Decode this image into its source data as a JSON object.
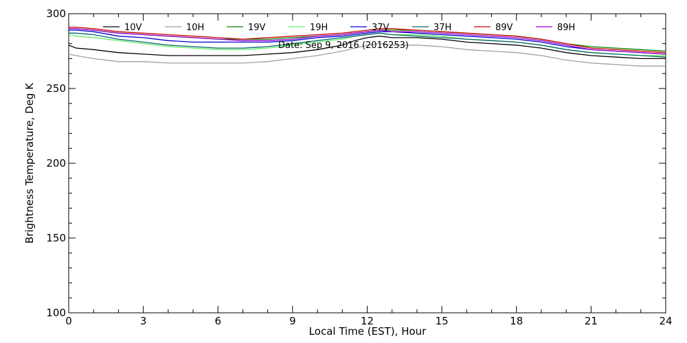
{
  "chart_data": {
    "type": "line",
    "title": "",
    "subtitle": "Date: Sep  9, 2016 (2016253)",
    "xlabel": "Local Time (EST), Hour",
    "ylabel": "Brightness Temperature, Deg K",
    "xlim": [
      0,
      24
    ],
    "ylim": [
      100,
      300
    ],
    "xticks": [
      0,
      3,
      6,
      9,
      12,
      15,
      18,
      21,
      24
    ],
    "yticks": [
      100,
      150,
      200,
      250,
      300
    ],
    "grid": false,
    "legend_position": "top",
    "series": [
      {
        "name": "10V",
        "color": "#000000",
        "x": [
          0,
          0.3,
          1,
          2,
          3,
          4,
          5,
          6,
          7,
          8,
          9,
          10,
          11,
          11.5,
          12,
          12.5,
          13,
          14,
          15,
          16,
          17,
          18,
          19,
          20,
          21,
          22,
          23,
          24
        ],
        "y": [
          279,
          277,
          276,
          274,
          273,
          272,
          272,
          272,
          272,
          273,
          274,
          276,
          279,
          282,
          284,
          285,
          284,
          284,
          283,
          281,
          280,
          279,
          277,
          274,
          272,
          271,
          270,
          270
        ]
      },
      {
        "name": "10H",
        "color": "#a0a0a0",
        "x": [
          0,
          0.3,
          1,
          2,
          3,
          4,
          5,
          6,
          7,
          8,
          9,
          10,
          11,
          11.5,
          12,
          12.5,
          13,
          14,
          15,
          16,
          17,
          18,
          19,
          20,
          21,
          22,
          23,
          24
        ],
        "y": [
          273,
          272,
          270,
          268,
          268,
          267,
          267,
          267,
          267,
          268,
          270,
          272,
          275,
          277,
          279,
          280,
          279,
          279,
          278,
          276,
          275,
          274,
          272,
          269,
          267,
          266,
          265,
          265
        ]
      },
      {
        "name": "19V",
        "color": "#008000",
        "x": [
          0,
          0.3,
          1,
          2,
          3,
          4,
          5,
          6,
          7,
          8,
          9,
          10,
          11,
          11.5,
          12,
          12.5,
          13,
          14,
          15,
          16,
          17,
          18,
          19,
          20,
          21,
          22,
          23,
          24
        ],
        "y": [
          290,
          290,
          289,
          287,
          286,
          285,
          284,
          283,
          283,
          283,
          284,
          285,
          286,
          287,
          288,
          289,
          289,
          289,
          288,
          287,
          286,
          285,
          283,
          280,
          278,
          277,
          276,
          275
        ]
      },
      {
        "name": "19H",
        "color": "#66ee66",
        "x": [
          0,
          0.3,
          1,
          2,
          3,
          4,
          5,
          6,
          7,
          8,
          9,
          10,
          11,
          11.5,
          12,
          12.5,
          13,
          14,
          15,
          16,
          17,
          18,
          19,
          20,
          21,
          22,
          23,
          24
        ],
        "y": [
          286,
          285,
          284,
          282,
          280,
          278,
          277,
          276,
          276,
          277,
          279,
          281,
          283,
          285,
          286,
          287,
          286,
          286,
          285,
          283,
          282,
          281,
          279,
          276,
          274,
          273,
          272,
          272
        ]
      },
      {
        "name": "37V",
        "color": "#0000cc",
        "x": [
          0,
          0.3,
          1,
          2,
          3,
          4,
          5,
          6,
          7,
          8,
          9,
          10,
          11,
          11.5,
          12,
          12.5,
          13,
          14,
          15,
          16,
          17,
          18,
          19,
          20,
          21,
          22,
          23,
          24
        ],
        "y": [
          289,
          289,
          288,
          285,
          284,
          282,
          281,
          281,
          281,
          281,
          282,
          284,
          285,
          286,
          287,
          288,
          288,
          287,
          286,
          285,
          284,
          283,
          281,
          278,
          276,
          275,
          274,
          273
        ]
      },
      {
        "name": "37H",
        "color": "#006666",
        "x": [
          0,
          0.3,
          1,
          2,
          3,
          4,
          5,
          6,
          7,
          8,
          9,
          10,
          11,
          11.5,
          12,
          12.5,
          13,
          14,
          15,
          16,
          17,
          18,
          19,
          20,
          21,
          22,
          23,
          24
        ],
        "y": [
          287,
          287,
          286,
          283,
          281,
          279,
          278,
          277,
          277,
          278,
          280,
          282,
          284,
          285,
          286,
          287,
          286,
          285,
          284,
          283,
          282,
          281,
          279,
          276,
          274,
          273,
          272,
          271
        ]
      },
      {
        "name": "89V",
        "color": "#cc0000",
        "x": [
          0,
          0.3,
          1,
          2,
          3,
          4,
          5,
          6,
          7,
          8,
          9,
          10,
          11,
          11.5,
          12,
          12.5,
          13,
          14,
          15,
          16,
          17,
          18,
          19,
          20,
          21,
          22,
          23,
          24
        ],
        "y": [
          291,
          291,
          290,
          288,
          287,
          286,
          285,
          284,
          283,
          284,
          285,
          286,
          287,
          288,
          289,
          290,
          290,
          289,
          288,
          287,
          286,
          285,
          283,
          280,
          277,
          276,
          275,
          274
        ]
      },
      {
        "name": "89H",
        "color": "#9900cc",
        "x": [
          0,
          0.3,
          1,
          2,
          3,
          4,
          5,
          6,
          7,
          8,
          9,
          10,
          11,
          11.5,
          12,
          12.5,
          13,
          14,
          15,
          16,
          17,
          18,
          19,
          20,
          21,
          22,
          23,
          24
        ],
        "y": [
          290,
          290,
          289,
          287,
          286,
          285,
          284,
          283,
          282,
          282,
          283,
          285,
          286,
          287,
          288,
          289,
          288,
          288,
          287,
          286,
          285,
          284,
          282,
          279,
          276,
          275,
          274,
          273
        ]
      }
    ]
  }
}
